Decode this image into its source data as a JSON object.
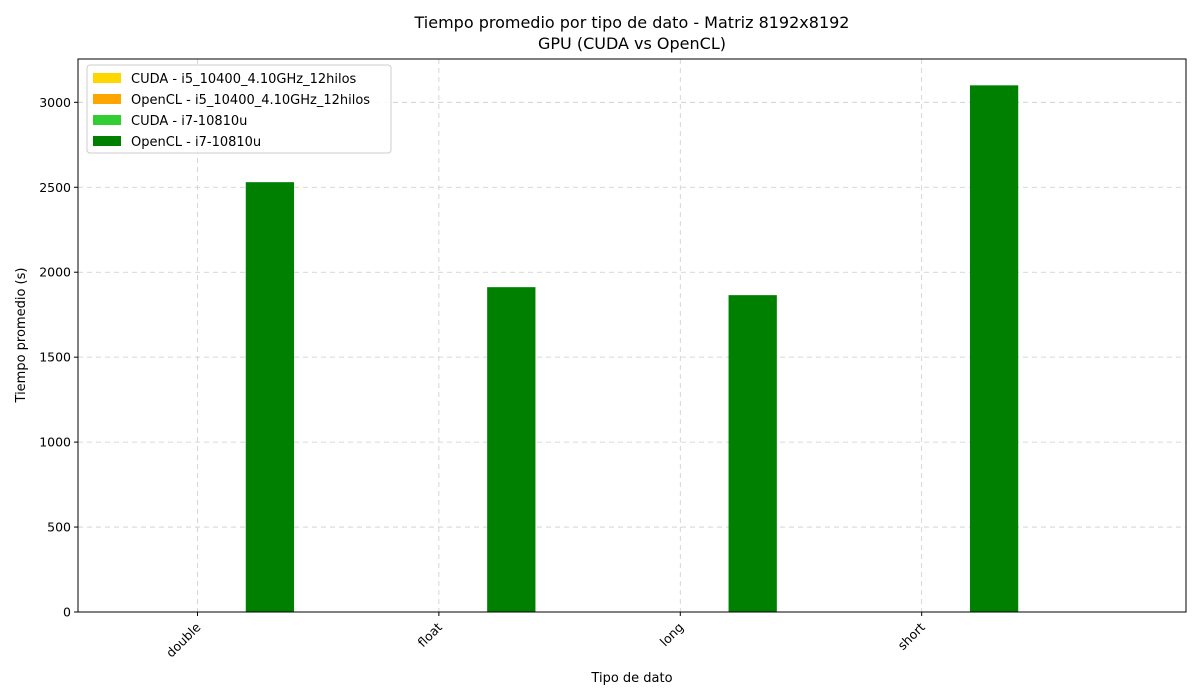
{
  "chart_data": {
    "type": "bar",
    "title": "Tiempo promedio por tipo de dato - Matriz 8192x8192",
    "subtitle": "GPU (CUDA vs OpenCL)",
    "xlabel": "Tipo de dato",
    "ylabel": "Tiempo promedio (s)",
    "categories": [
      "double",
      "float",
      "long",
      "short"
    ],
    "ylim": [
      0,
      3255
    ],
    "yticks": [
      0,
      500,
      1000,
      1500,
      2000,
      2500,
      3000
    ],
    "grid": true,
    "legend_position": "top-left",
    "series": [
      {
        "name": "CUDA - i5_10400_4.10GHz_12hilos",
        "color": "#FFD700",
        "values": [
          3,
          1,
          3,
          3
        ]
      },
      {
        "name": "OpenCL - i5_10400_4.10GHz_12hilos",
        "color": "#FFA500",
        "values": [
          1,
          1,
          1,
          1
        ]
      },
      {
        "name": "CUDA - i7-10810u",
        "color": "#32CD32",
        "values": [
          1,
          1,
          1,
          1
        ]
      },
      {
        "name": "OpenCL - i7-10810u",
        "color": "#008000",
        "values": [
          2530,
          1912,
          1865,
          3100
        ]
      }
    ]
  }
}
